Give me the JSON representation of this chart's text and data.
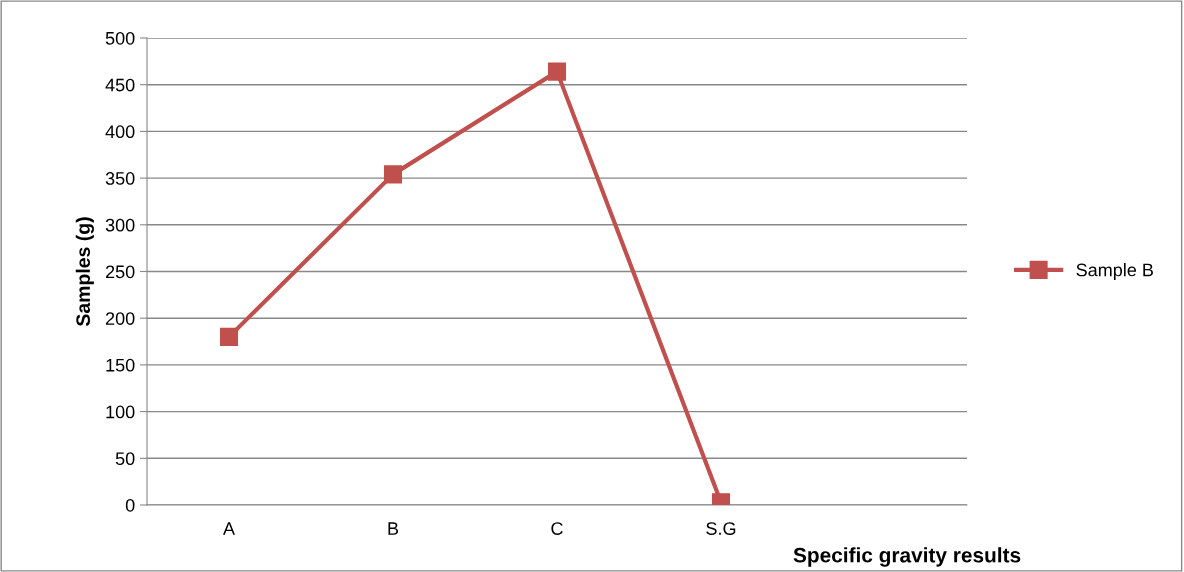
{
  "chart_data": {
    "type": "line",
    "xlabel": "Specific gravity results",
    "ylabel": "Samples (g)",
    "categories": [
      "A",
      "B",
      "C",
      "S.G",
      null
    ],
    "series": [
      {
        "name": "Sample B",
        "color": "#c0504d",
        "values": [
          180,
          354,
          464,
          3,
          null
        ]
      }
    ],
    "ylim": [
      0,
      500
    ],
    "yticks": [
      0,
      50,
      100,
      150,
      200,
      250,
      300,
      350,
      400,
      450,
      500
    ],
    "grid": "y",
    "legend": "right",
    "marker": "square",
    "line_style": "solid"
  }
}
